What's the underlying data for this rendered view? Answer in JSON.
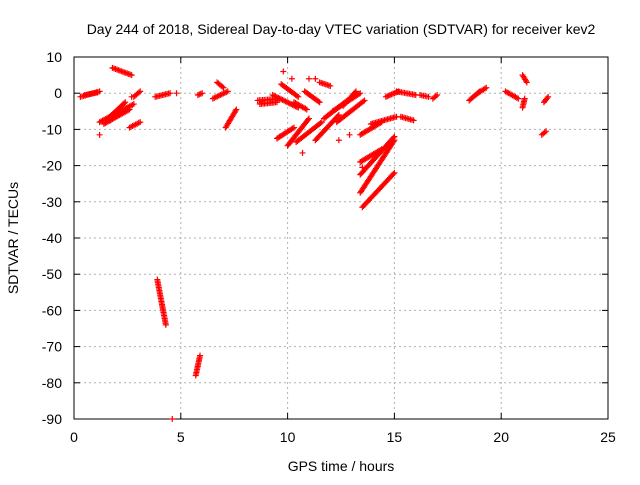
{
  "chart_data": {
    "type": "scatter",
    "title": "Day 244 of 2018, Sidereal Day-to-day VTEC variation (SDTVAR) for receiver kev2",
    "xlabel": "GPS time / hours",
    "ylabel": "SDTVAR / TECUs",
    "xlim": [
      0,
      25
    ],
    "ylim": [
      -90,
      10
    ],
    "xticks": [
      0,
      5,
      10,
      15,
      20,
      25
    ],
    "yticks": [
      -90,
      -80,
      -70,
      -60,
      -50,
      -40,
      -30,
      -20,
      -10,
      0,
      10
    ],
    "xtick_labels": [
      "0",
      "5",
      "10",
      "15",
      "20",
      "25"
    ],
    "ytick_labels": [
      "-90",
      "-80",
      "-70",
      "-60",
      "-50",
      "-40",
      "-30",
      "-20",
      "-10",
      "0",
      "10"
    ],
    "grid": true,
    "marker": "+",
    "color": "#ff0000",
    "series": [
      {
        "name": "SDTVAR",
        "segments": [
          [
            [
              0.3,
              -1.0
            ],
            [
              1.2,
              0.5
            ]
          ],
          [
            [
              0.5,
              -0.5
            ],
            [
              1.1,
              0.2
            ]
          ],
          [
            [
              1.2,
              -8.0
            ],
            [
              2.8,
              -3.0
            ]
          ],
          [
            [
              1.4,
              -8.5
            ],
            [
              2.6,
              -4.5
            ]
          ],
          [
            [
              1.5,
              -7.5
            ],
            [
              2.4,
              -2.5
            ]
          ],
          [
            [
              1.8,
              7.0
            ],
            [
              2.7,
              5.0
            ]
          ],
          [
            [
              2.6,
              -9.5
            ],
            [
              3.1,
              -8.0
            ]
          ],
          [
            [
              2.8,
              -1.0
            ],
            [
              3.1,
              0.5
            ]
          ],
          [
            [
              3.8,
              -1.0
            ],
            [
              4.5,
              0.0
            ]
          ],
          [
            [
              3.9,
              -51.5
            ],
            [
              4.3,
              -64.0
            ]
          ],
          [
            [
              5.7,
              -78.0
            ],
            [
              5.9,
              -72.5
            ]
          ],
          [
            [
              5.8,
              -0.5
            ],
            [
              6.0,
              0.0
            ]
          ],
          [
            [
              6.5,
              -1.5
            ],
            [
              7.2,
              0.5
            ]
          ],
          [
            [
              6.7,
              3.0
            ],
            [
              7.0,
              1.5
            ]
          ],
          [
            [
              7.1,
              -9.5
            ],
            [
              7.6,
              -4.5
            ]
          ],
          [
            [
              8.6,
              -2.0
            ],
            [
              9.6,
              -1.5
            ]
          ],
          [
            [
              8.7,
              -3.0
            ],
            [
              9.5,
              -2.5
            ]
          ],
          [
            [
              9.5,
              -12.5
            ],
            [
              10.3,
              -9.5
            ]
          ],
          [
            [
              9.3,
              -0.5
            ],
            [
              10.5,
              -4.0
            ]
          ],
          [
            [
              9.7,
              2.5
            ],
            [
              10.5,
              -1.0
            ]
          ],
          [
            [
              10.0,
              -14.5
            ],
            [
              11.0,
              -7.0
            ]
          ],
          [
            [
              10.3,
              -2.5
            ],
            [
              10.9,
              -4.5
            ]
          ],
          [
            [
              10.4,
              -13.5
            ],
            [
              11.6,
              -8.0
            ]
          ],
          [
            [
              10.8,
              0.5
            ],
            [
              11.5,
              -2.5
            ]
          ],
          [
            [
              11.3,
              -13.0
            ],
            [
              12.4,
              -6.0
            ]
          ],
          [
            [
              11.5,
              3.0
            ],
            [
              12.0,
              2.0
            ]
          ],
          [
            [
              11.7,
              -7.0
            ],
            [
              12.8,
              -2.0
            ]
          ],
          [
            [
              12.1,
              -5.0
            ],
            [
              13.4,
              0.0
            ]
          ],
          [
            [
              12.3,
              -8.0
            ],
            [
              13.6,
              -2.0
            ]
          ],
          [
            [
              12.6,
              -3.5
            ],
            [
              13.2,
              0.5
            ]
          ],
          [
            [
              13.4,
              -11.5
            ],
            [
              14.4,
              -8.0
            ]
          ],
          [
            [
              13.4,
              -19.0
            ],
            [
              14.4,
              -15.5
            ]
          ],
          [
            [
              13.4,
              -22.5
            ],
            [
              15.0,
              -12.0
            ]
          ],
          [
            [
              13.4,
              -27.5
            ],
            [
              15.0,
              -13.0
            ]
          ],
          [
            [
              13.5,
              -31.5
            ],
            [
              15.0,
              -22.0
            ]
          ],
          [
            [
              13.9,
              -8.5
            ],
            [
              15.1,
              -6.5
            ]
          ],
          [
            [
              14.6,
              -1.0
            ],
            [
              15.2,
              0.5
            ]
          ],
          [
            [
              15.3,
              -6.5
            ],
            [
              15.9,
              -7.5
            ]
          ],
          [
            [
              15.1,
              0.5
            ],
            [
              16.0,
              -0.5
            ]
          ],
          [
            [
              16.2,
              -0.5
            ],
            [
              16.6,
              -1.0
            ]
          ],
          [
            [
              16.8,
              -1.5
            ],
            [
              17.0,
              -0.5
            ]
          ],
          [
            [
              18.5,
              -2.0
            ],
            [
              19.0,
              0.5
            ]
          ],
          [
            [
              18.9,
              0.0
            ],
            [
              19.3,
              1.5
            ]
          ],
          [
            [
              20.2,
              0.5
            ],
            [
              20.8,
              -1.5
            ]
          ],
          [
            [
              21.0,
              -4.0
            ],
            [
              21.1,
              -1.5
            ]
          ],
          [
            [
              21.0,
              5.0
            ],
            [
              21.2,
              3.0
            ]
          ],
          [
            [
              22.0,
              -2.5
            ],
            [
              22.2,
              -1.0
            ]
          ],
          [
            [
              21.9,
              -11.5
            ],
            [
              22.1,
              -10.5
            ]
          ]
        ],
        "points": [
          [
            1.2,
            -11.5
          ],
          [
            1.7,
            -7.5
          ],
          [
            2.7,
            -1.0
          ],
          [
            4.8,
            0.0
          ],
          [
            4.6,
            -90.0
          ],
          [
            9.8,
            6.0
          ],
          [
            10.2,
            4.0
          ],
          [
            11.0,
            4.0
          ],
          [
            11.3,
            4.0
          ],
          [
            12.9,
            -11.5
          ],
          [
            12.4,
            -13.0
          ],
          [
            10.7,
            -16.5
          ],
          [
            13.5,
            -20.5
          ]
        ]
      }
    ]
  }
}
